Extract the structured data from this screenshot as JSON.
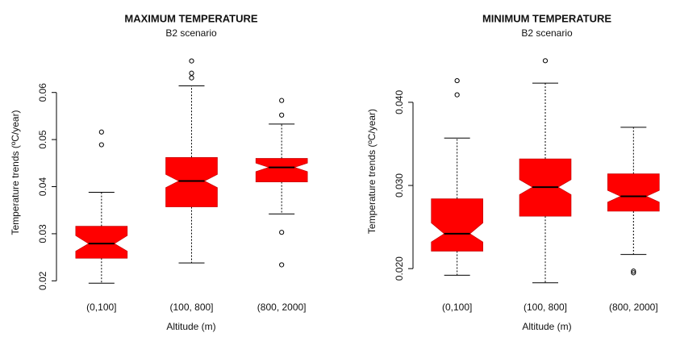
{
  "chart_data": [
    {
      "type": "boxplot",
      "title": "MAXIMUM TEMPERATURE",
      "subtitle": "B2 scenario",
      "x_label": "Altitude (m)",
      "y_label": "Temperature trends (ºC/year)",
      "categories": [
        "(0,100]",
        "(100, 800]",
        "(800, 2000]"
      ],
      "color": "#ff0000",
      "ylim": [
        0.018,
        0.068
      ],
      "yticks": [
        0.02,
        0.03,
        0.04,
        0.05,
        0.06
      ],
      "boxes": [
        {
          "low": 0.0195,
          "q1": 0.0248,
          "notch_low": 0.0263,
          "median": 0.0279,
          "notch_high": 0.0296,
          "q3": 0.0316,
          "high": 0.0388,
          "outliers": [
            0.0489,
            0.0516
          ]
        },
        {
          "low": 0.0238,
          "q1": 0.0357,
          "notch_low": 0.0398,
          "median": 0.0412,
          "notch_high": 0.0426,
          "q3": 0.0462,
          "high": 0.0614,
          "outliers": [
            0.0631,
            0.0641,
            0.0667
          ]
        },
        {
          "low": 0.0342,
          "q1": 0.041,
          "notch_low": 0.0432,
          "median": 0.0441,
          "notch_high": 0.045,
          "q3": 0.046,
          "high": 0.0533,
          "outliers": [
            0.0303,
            0.0234,
            0.0552,
            0.0583
          ]
        }
      ]
    },
    {
      "type": "boxplot",
      "title": "MINIMUM TEMPERATURE",
      "subtitle": "B2 scenario",
      "x_label": "Altitude (m)",
      "y_label": "Temperature trends (ºC/year)",
      "categories": [
        "(0,100]",
        "(100, 800]",
        "(800, 2000]"
      ],
      "color": "#ff0000",
      "ylim": [
        0.0174,
        0.046
      ],
      "yticks": [
        {
          "value": 0.02,
          "label": "0.020"
        },
        {
          "value": 0.03,
          "label": "0.030"
        },
        {
          "value": 0.04,
          "label": "0.040"
        }
      ],
      "boxes": [
        {
          "low": 0.0192,
          "q1": 0.0221,
          "notch_low": 0.0232,
          "median": 0.0242,
          "notch_high": 0.0255,
          "q3": 0.0284,
          "high": 0.0357,
          "outliers": [
            0.0409,
            0.0426
          ]
        },
        {
          "low": 0.0183,
          "q1": 0.0263,
          "notch_low": 0.0289,
          "median": 0.0298,
          "notch_high": 0.0307,
          "q3": 0.0332,
          "high": 0.0423,
          "outliers": [
            0.045
          ]
        },
        {
          "low": 0.0217,
          "q1": 0.0269,
          "notch_low": 0.028,
          "median": 0.0287,
          "notch_high": 0.0294,
          "q3": 0.0314,
          "high": 0.037,
          "outliers": [
            0.0197,
            0.0195
          ]
        }
      ]
    }
  ]
}
